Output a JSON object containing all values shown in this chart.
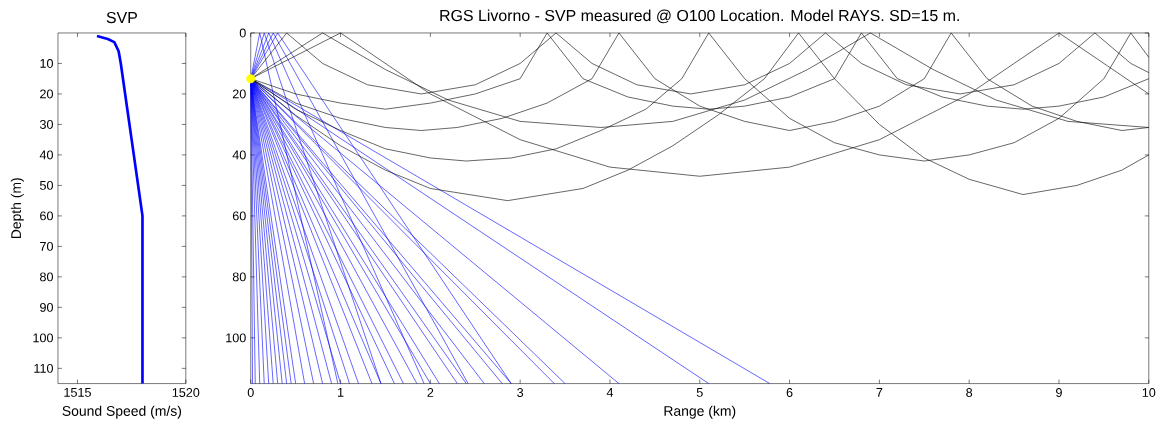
{
  "chart_data": [
    {
      "type": "line",
      "title": "SVP",
      "xlabel": "Sound Speed (m/s)",
      "ylabel": "Depth (m)",
      "xlim": [
        1514.1,
        1520
      ],
      "ylim": [
        115,
        0
      ],
      "xticks": [
        1515,
        1520
      ],
      "yticks": [
        10,
        20,
        30,
        40,
        50,
        60,
        70,
        80,
        90,
        100,
        110
      ],
      "series": [
        {
          "color": "#0000ff",
          "x": [
            1515.9,
            1516.4,
            1516.7,
            1516.9,
            1517.0,
            1517.1,
            1517.2,
            1517.3,
            1517.4,
            1517.5,
            1517.6,
            1517.7,
            1517.8,
            1517.9,
            1518.0,
            1518.0
          ],
          "values": [
            1,
            2,
            3,
            6,
            10,
            15,
            20,
            25,
            30,
            35,
            40,
            45,
            50,
            55,
            60,
            115
          ]
        }
      ]
    },
    {
      "type": "line",
      "title": "RGS Livorno - SVP measured @ O100 Location. Model RAYS. SD=15 m.",
      "xlabel": "Range (km)",
      "xlim": [
        0,
        10
      ],
      "ylim": [
        115,
        0
      ],
      "xticks": [
        0,
        1,
        2,
        3,
        4,
        5,
        6,
        7,
        8,
        9,
        10
      ],
      "yticks": [
        0,
        20,
        40,
        60,
        80,
        100
      ],
      "series": [
        {
          "color": "#0000ff",
          "x": [
            0,
            5.78
          ],
          "values": [
            15,
            115
          ]
        },
        {
          "color": "#0000ff",
          "x": [
            0,
            5.1
          ],
          "values": [
            15,
            115
          ]
        },
        {
          "color": "#0000ff",
          "x": [
            0,
            4.1
          ],
          "values": [
            15,
            115
          ]
        },
        {
          "color": "#0000ff",
          "x": [
            0,
            3.5
          ],
          "values": [
            15,
            115
          ]
        },
        {
          "color": "#0000ff",
          "x": [
            0,
            3.38
          ],
          "values": [
            15,
            115
          ]
        },
        {
          "color": "#0000ff",
          "x": [
            0,
            2.9
          ],
          "values": [
            15,
            115
          ]
        },
        {
          "color": "#0000ff",
          "x": [
            0,
            2.8
          ],
          "values": [
            15,
            115
          ]
        },
        {
          "color": "#0000ff",
          "x": [
            0,
            2.6
          ],
          "values": [
            15,
            115
          ]
        },
        {
          "color": "#0000ff",
          "x": [
            0,
            2.4
          ],
          "values": [
            15,
            115
          ]
        },
        {
          "color": "#0000ff",
          "x": [
            0,
            2.3
          ],
          "values": [
            15,
            115
          ]
        },
        {
          "color": "#0000ff",
          "x": [
            0,
            2.1
          ],
          "values": [
            15,
            115
          ]
        },
        {
          "color": "#0000ff",
          "x": [
            0,
            2.0
          ],
          "values": [
            15,
            115
          ]
        },
        {
          "color": "#0000ff",
          "x": [
            0,
            1.85
          ],
          "values": [
            15,
            115
          ]
        },
        {
          "color": "#0000ff",
          "x": [
            0,
            1.7
          ],
          "values": [
            15,
            115
          ]
        },
        {
          "color": "#0000ff",
          "x": [
            0,
            1.6
          ],
          "values": [
            15,
            115
          ]
        },
        {
          "color": "#0000ff",
          "x": [
            0,
            1.45
          ],
          "values": [
            15,
            115
          ]
        },
        {
          "color": "#0000ff",
          "x": [
            0,
            1.35
          ],
          "values": [
            15,
            115
          ]
        },
        {
          "color": "#0000ff",
          "x": [
            0,
            1.2
          ],
          "values": [
            15,
            115
          ]
        },
        {
          "color": "#0000ff",
          "x": [
            0,
            1.1
          ],
          "values": [
            15,
            115
          ]
        },
        {
          "color": "#0000ff",
          "x": [
            0,
            1.0
          ],
          "values": [
            15,
            115
          ]
        },
        {
          "color": "#0000ff",
          "x": [
            0,
            0.9
          ],
          "values": [
            15,
            115
          ]
        },
        {
          "color": "#0000ff",
          "x": [
            0,
            0.8
          ],
          "values": [
            15,
            115
          ]
        },
        {
          "color": "#0000ff",
          "x": [
            0,
            0.7
          ],
          "values": [
            15,
            115
          ]
        },
        {
          "color": "#0000ff",
          "x": [
            0,
            0.6
          ],
          "values": [
            15,
            115
          ]
        },
        {
          "color": "#0000ff",
          "x": [
            0,
            0.5
          ],
          "values": [
            15,
            115
          ]
        },
        {
          "color": "#0000ff",
          "x": [
            0,
            0.45
          ],
          "values": [
            15,
            115
          ]
        },
        {
          "color": "#0000ff",
          "x": [
            0,
            0.4
          ],
          "values": [
            15,
            115
          ]
        },
        {
          "color": "#0000ff",
          "x": [
            0,
            0.35
          ],
          "values": [
            15,
            115
          ]
        },
        {
          "color": "#0000ff",
          "x": [
            0,
            0.3
          ],
          "values": [
            15,
            115
          ]
        },
        {
          "color": "#0000ff",
          "x": [
            0,
            0.25
          ],
          "values": [
            15,
            115
          ]
        },
        {
          "color": "#0000ff",
          "x": [
            0,
            0.2
          ],
          "values": [
            15,
            115
          ]
        },
        {
          "color": "#0000ff",
          "x": [
            0,
            0.15
          ],
          "values": [
            15,
            115
          ]
        },
        {
          "color": "#0000ff",
          "x": [
            0,
            0.1
          ],
          "values": [
            15,
            115
          ]
        },
        {
          "color": "#0000ff",
          "x": [
            0,
            0.05
          ],
          "values": [
            15,
            115
          ]
        },
        {
          "color": "#0000ff",
          "x": [
            0,
            0.02
          ],
          "values": [
            15,
            115
          ]
        },
        {
          "color": "#0000ff",
          "x": [
            0,
            0.1,
            0.97
          ],
          "values": [
            15,
            0,
            115
          ]
        },
        {
          "color": "#0000ff",
          "x": [
            0,
            0.15,
            1.45
          ],
          "values": [
            15,
            0,
            115
          ]
        },
        {
          "color": "#0000ff",
          "x": [
            0,
            0.2,
            1.93
          ],
          "values": [
            15,
            0,
            115
          ]
        },
        {
          "color": "#0000ff",
          "x": [
            0,
            0.25,
            2.42
          ],
          "values": [
            15,
            0,
            115
          ]
        },
        {
          "color": "#0000ff",
          "x": [
            0,
            0.3,
            2.9
          ],
          "values": [
            15,
            0,
            115
          ]
        },
        {
          "color": "#000000",
          "x": [
            0,
            0.5,
            1,
            1.5,
            2,
            2.86,
            3.7,
            4.2,
            4.7,
            5.2,
            5.72,
            6.1,
            6.5,
            7,
            7.5,
            8,
            8.6,
            9.2,
            9.7,
            10
          ],
          "values": [
            15,
            27,
            37,
            45,
            51,
            55,
            51,
            45,
            37,
            27,
            15,
            0,
            15,
            30,
            41,
            48,
            53,
            50,
            45,
            40
          ]
        },
        {
          "color": "#000000",
          "x": [
            0,
            0.5,
            1,
            1.5,
            2,
            2.4,
            2.9,
            3.4,
            3.9,
            4.4,
            4.8,
            5.1,
            5.5,
            6,
            6.5,
            7,
            7.5,
            8,
            8.5,
            9,
            9.5,
            9.8,
            10
          ],
          "values": [
            15,
            25,
            32,
            38,
            41,
            42,
            41,
            38,
            32,
            25,
            15,
            0,
            15,
            28,
            36,
            40,
            42,
            40,
            36,
            28,
            15,
            0,
            8
          ]
        },
        {
          "color": "#000000",
          "x": [
            0,
            0.5,
            1,
            1.5,
            1.9,
            2.3,
            2.8,
            3.3,
            3.8,
            4.1,
            4.5,
            5,
            5.5,
            6,
            6.5,
            7,
            7.5,
            7.8,
            8.2,
            8.7,
            9.2,
            9.7,
            10
          ],
          "values": [
            15,
            23,
            28,
            31,
            32,
            31,
            28,
            23,
            15,
            0,
            15,
            24,
            29,
            32,
            29,
            24,
            15,
            0,
            15,
            24,
            29,
            32,
            31
          ]
        },
        {
          "color": "#000000",
          "x": [
            0,
            0.5,
            1,
            1.5,
            2,
            2.5,
            3,
            3.3,
            3.7,
            4.2,
            4.7,
            5.1,
            5.5,
            6,
            6.5,
            6.8,
            7.2,
            7.7,
            8.2,
            8.6,
            9,
            9.5,
            10
          ],
          "values": [
            15,
            20,
            23,
            25,
            23,
            20,
            15,
            0,
            15,
            21,
            24,
            25,
            24,
            21,
            15,
            0,
            15,
            21,
            24,
            25,
            24,
            21,
            15
          ]
        },
        {
          "color": "#000000",
          "x": [
            0,
            0.4,
            0.8,
            1.3,
            1.9,
            2.5,
            3,
            3.4,
            3.8,
            4.3,
            4.9,
            5.5,
            6,
            6.4,
            6.8,
            7.3,
            7.9,
            8.5,
            9,
            9.4,
            9.8,
            10
          ],
          "values": [
            15,
            0,
            10,
            17,
            20,
            17,
            10,
            0,
            10,
            17,
            20,
            17,
            10,
            0,
            10,
            17,
            20,
            17,
            10,
            0,
            10,
            13
          ]
        },
        {
          "color": "#000000",
          "x": [
            0,
            0.8,
            1.5,
            2.2,
            3,
            3.9,
            4.7,
            5.5,
            6.2,
            6.9,
            7.6,
            8.3,
            9.1,
            10
          ],
          "values": [
            15,
            0,
            12,
            22,
            29,
            31,
            29,
            22,
            12,
            0,
            12,
            22,
            29,
            31
          ]
        },
        {
          "color": "#000000",
          "x": [
            0,
            1,
            2,
            3,
            4,
            5,
            6,
            7,
            8,
            9,
            10
          ],
          "values": [
            15,
            0,
            20,
            35,
            44,
            47,
            44,
            35,
            20,
            0,
            20
          ]
        },
        {
          "type": "scatter",
          "color": "#ffff00",
          "x": [
            0
          ],
          "values": [
            15
          ]
        }
      ]
    }
  ]
}
